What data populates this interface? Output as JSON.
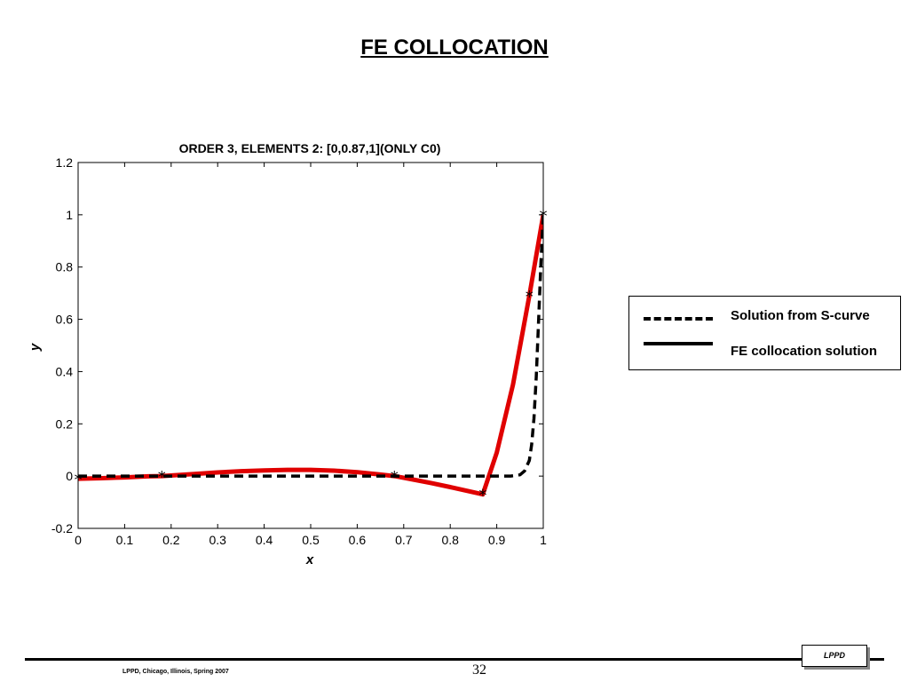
{
  "slide": {
    "title": "FE COLLOCATION",
    "footer_text": "LPPD, Chicago, Illinois, Spring 2007",
    "page_number": "32",
    "logo_text": "LPPD"
  },
  "legend": {
    "items": [
      {
        "label": "Solution from S-curve",
        "style": "dashed",
        "color": "#000000"
      },
      {
        "label": "FE collocation solution",
        "style": "solid",
        "color": "#000000"
      }
    ]
  },
  "chart_data": {
    "type": "line",
    "title": "ORDER 3, ELEMENTS 2: [0,0.87,1](ONLY C0)",
    "xlabel": "x",
    "ylabel": "y",
    "xlim": [
      0,
      1
    ],
    "ylim": [
      -0.2,
      1.2
    ],
    "xticks": [
      "0",
      "0.1",
      "0.2",
      "0.3",
      "0.4",
      "0.5",
      "0.6",
      "0.7",
      "0.8",
      "0.9",
      "1"
    ],
    "xtick_values": [
      0,
      0.1,
      0.2,
      0.3,
      0.4,
      0.5,
      0.6,
      0.7,
      0.8,
      0.9,
      1
    ],
    "yticks": [
      "-0.2",
      "0",
      "0.2",
      "0.4",
      "0.6",
      "0.8",
      "1",
      "1.2"
    ],
    "ytick_values": [
      -0.2,
      0,
      0.2,
      0.4,
      0.6,
      0.8,
      1,
      1.2
    ],
    "grid": false,
    "series": [
      {
        "role": "S-curve solution",
        "color": "#000000",
        "line_style": "dashed",
        "x": [
          0,
          0.1,
          0.2,
          0.3,
          0.4,
          0.5,
          0.6,
          0.7,
          0.8,
          0.9,
          0.93,
          0.95,
          0.96,
          0.97,
          0.975,
          0.98,
          0.985,
          0.99,
          0.995,
          1
        ],
        "y": [
          0,
          0,
          0,
          0,
          0,
          0,
          0,
          0,
          0,
          0,
          0,
          0.005,
          0.02,
          0.06,
          0.12,
          0.22,
          0.38,
          0.6,
          0.82,
          1.0
        ]
      },
      {
        "role": "FE collocation solution",
        "color": "#e00000",
        "line_style": "solid",
        "x": [
          0,
          0.05,
          0.1,
          0.15,
          0.18,
          0.25,
          0.3,
          0.35,
          0.4,
          0.45,
          0.5,
          0.55,
          0.6,
          0.65,
          0.68,
          0.72,
          0.76,
          0.8,
          0.84,
          0.87,
          0.9,
          0.935,
          0.97,
          1
        ],
        "y": [
          -0.01,
          -0.008,
          -0.005,
          -0.001,
          0.0,
          0.008,
          0.014,
          0.019,
          0.022,
          0.024,
          0.024,
          0.021,
          0.015,
          0.006,
          0.0,
          -0.013,
          -0.027,
          -0.042,
          -0.058,
          -0.07,
          0.09,
          0.35,
          0.69,
          1.0
        ]
      }
    ],
    "markers": {
      "symbol": "*",
      "color": "#000000",
      "x": [
        0,
        0.18,
        0.68,
        0.87,
        0.97,
        1
      ],
      "y": [
        -0.01,
        0.0,
        0.0,
        -0.07,
        0.69,
        1.0
      ]
    }
  }
}
